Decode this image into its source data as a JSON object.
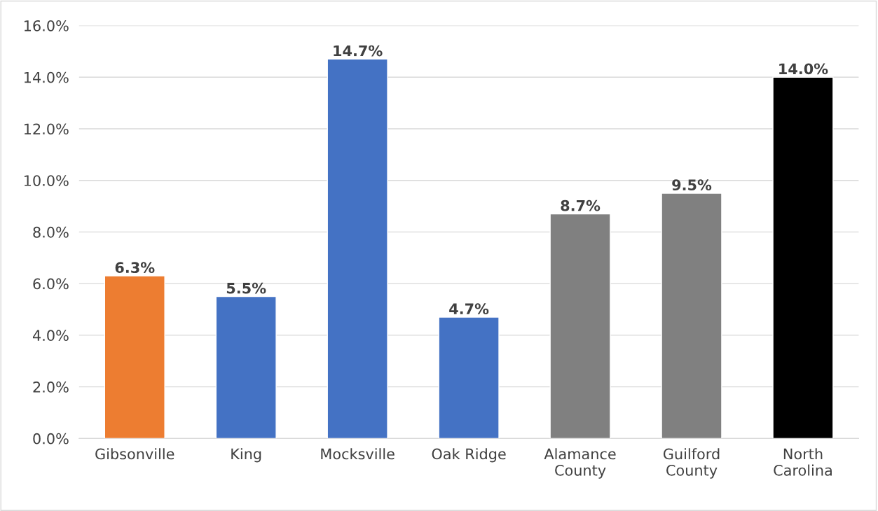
{
  "chart_data": {
    "type": "bar",
    "categories": [
      "Gibsonville",
      "King",
      "Mocksville",
      "Oak Ridge",
      "Alamance County",
      "Guilford County",
      "North Carolina"
    ],
    "values": [
      6.3,
      5.5,
      14.7,
      4.7,
      8.7,
      9.5,
      14.0
    ],
    "colors": [
      "#ed7d31",
      "#4472c4",
      "#4472c4",
      "#4472c4",
      "#808080",
      "#808080",
      "#000000"
    ],
    "value_labels": [
      "6.3%",
      "5.5%",
      "14.7%",
      "4.7%",
      "8.7%",
      "9.5%",
      "14.0%"
    ],
    "ylim": [
      0,
      16
    ],
    "yticks": [
      {
        "value": 0,
        "label": "0.0%"
      },
      {
        "value": 2,
        "label": "2.0%"
      },
      {
        "value": 4,
        "label": "4.0%"
      },
      {
        "value": 6,
        "label": "6.0%"
      },
      {
        "value": 8,
        "label": "8.0%"
      },
      {
        "value": 10,
        "label": "10.0%"
      },
      {
        "value": 12,
        "label": "12.0%"
      },
      {
        "value": 14,
        "label": "14.0%"
      },
      {
        "value": 16,
        "label": "16.0%"
      }
    ],
    "grid": "y",
    "legend": false
  }
}
